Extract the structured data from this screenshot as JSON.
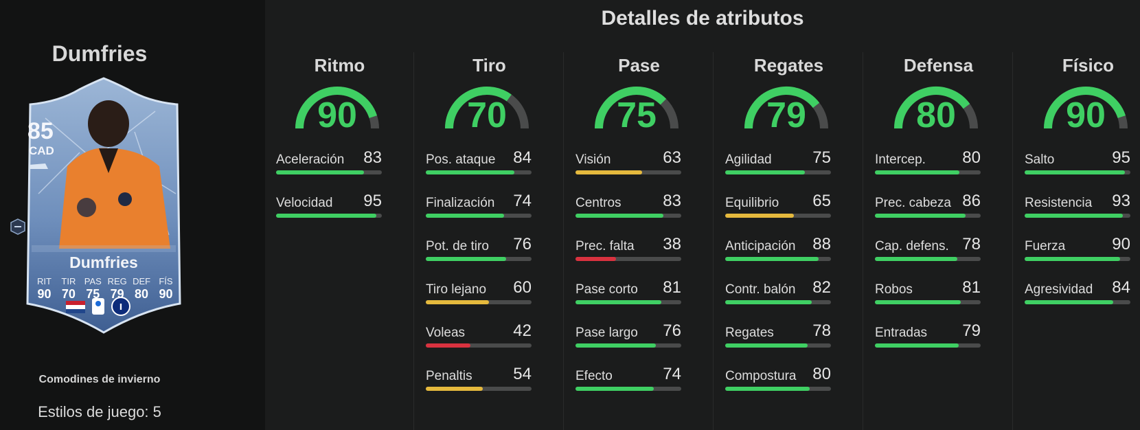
{
  "player": {
    "name": "Dumfries",
    "card": {
      "rating": "85",
      "position": "CAD",
      "name": "Dumfries",
      "stat_labels": [
        "RIT",
        "TIR",
        "PAS",
        "REG",
        "DEF",
        "FÍS"
      ],
      "stat_values": [
        "90",
        "70",
        "75",
        "79",
        "80",
        "90"
      ]
    },
    "promo": "Comodines de invierno",
    "playstyles": "Estilos de juego: 5"
  },
  "section_title": "Detalles de atributos",
  "colors": {
    "high": "#3fcf63",
    "mid": "#e5b93d",
    "low": "#d9323f",
    "track": "#4a4b4b"
  },
  "categories": [
    {
      "key": "ritmo",
      "title": "Ritmo",
      "value": 90,
      "stats": [
        {
          "label": "Aceleración",
          "value": 83
        },
        {
          "label": "Velocidad",
          "value": 95
        }
      ]
    },
    {
      "key": "tiro",
      "title": "Tiro",
      "value": 70,
      "stats": [
        {
          "label": "Pos. ataque",
          "value": 84
        },
        {
          "label": "Finalización",
          "value": 74
        },
        {
          "label": "Pot. de tiro",
          "value": 76
        },
        {
          "label": "Tiro lejano",
          "value": 60
        },
        {
          "label": "Voleas",
          "value": 42
        },
        {
          "label": "Penaltis",
          "value": 54
        }
      ]
    },
    {
      "key": "pase",
      "title": "Pase",
      "value": 75,
      "stats": [
        {
          "label": "Visión",
          "value": 63
        },
        {
          "label": "Centros",
          "value": 83
        },
        {
          "label": "Prec. falta",
          "value": 38
        },
        {
          "label": "Pase corto",
          "value": 81
        },
        {
          "label": "Pase largo",
          "value": 76
        },
        {
          "label": "Efecto",
          "value": 74
        }
      ]
    },
    {
      "key": "regates",
      "title": "Regates",
      "value": 79,
      "stats": [
        {
          "label": "Agilidad",
          "value": 75
        },
        {
          "label": "Equilibrio",
          "value": 65
        },
        {
          "label": "Anticipación",
          "value": 88
        },
        {
          "label": "Contr. balón",
          "value": 82
        },
        {
          "label": "Regates",
          "value": 78
        },
        {
          "label": "Compostura",
          "value": 80
        }
      ]
    },
    {
      "key": "defensa",
      "title": "Defensa",
      "value": 80,
      "stats": [
        {
          "label": "Intercep.",
          "value": 80
        },
        {
          "label": "Prec. cabeza",
          "value": 86
        },
        {
          "label": "Cap. defens.",
          "value": 78
        },
        {
          "label": "Robos",
          "value": 81
        },
        {
          "label": "Entradas",
          "value": 79
        }
      ]
    },
    {
      "key": "fisico",
      "title": "Físico",
      "value": 90,
      "stats": [
        {
          "label": "Salto",
          "value": 95
        },
        {
          "label": "Resistencia",
          "value": 93
        },
        {
          "label": "Fuerza",
          "value": 90
        },
        {
          "label": "Agresividad",
          "value": 84
        }
      ]
    }
  ]
}
